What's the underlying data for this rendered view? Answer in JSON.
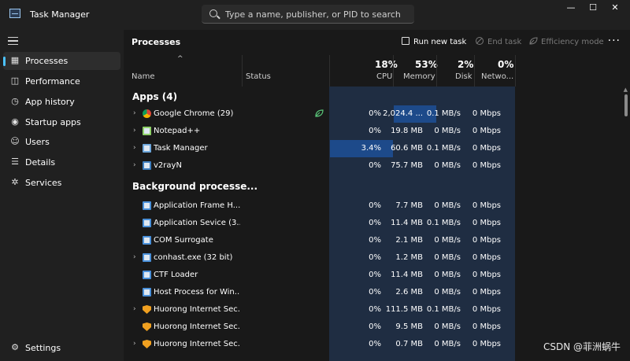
{
  "window": {
    "title": "Task Manager",
    "minimize": "—",
    "maximize": "☐",
    "close": "✕"
  },
  "search": {
    "placeholder": "Type a name, publisher, or PID to search"
  },
  "sidebar": {
    "items": [
      {
        "label": "Processes",
        "icon": "processes-icon",
        "glyph": "▦"
      },
      {
        "label": "Performance",
        "icon": "performance-icon",
        "glyph": "◫"
      },
      {
        "label": "App history",
        "icon": "app-history-icon",
        "glyph": "◷"
      },
      {
        "label": "Startup apps",
        "icon": "startup-apps-icon",
        "glyph": "◉"
      },
      {
        "label": "Users",
        "icon": "users-icon",
        "glyph": "☺"
      },
      {
        "label": "Details",
        "icon": "details-icon",
        "glyph": "☰"
      },
      {
        "label": "Services",
        "icon": "services-icon",
        "glyph": "✲"
      }
    ],
    "settings": {
      "label": "Settings",
      "glyph": "⚙"
    }
  },
  "toolbar": {
    "title": "Processes",
    "run_new_task": "Run new task",
    "end_task": "End task",
    "efficiency_mode": "Efficiency mode",
    "more": "···"
  },
  "columns": {
    "sort_arrow": "^",
    "name": "Name",
    "status": "Status",
    "cpu_pct": "18%",
    "cpu": "CPU",
    "memory_pct": "53%",
    "memory": "Memory",
    "disk_pct": "2%",
    "disk": "Disk",
    "network_pct": "0%",
    "network": "Netwo..."
  },
  "sections": {
    "apps": "Apps (4)",
    "background": "Background processe..."
  },
  "apps": [
    {
      "name": "Google Chrome (29)",
      "cpu": "0%",
      "memory": "2,024.4 ...",
      "disk": "0.1 MB/s",
      "network": "0 Mbps",
      "expandable": true,
      "status_icon": "efficiency-leaf",
      "icon_color": "#e8a020"
    },
    {
      "name": "Notepad++",
      "cpu": "0%",
      "memory": "19.8 MB",
      "disk": "0 MB/s",
      "network": "0 Mbps",
      "expandable": true,
      "icon_color": "#8fd16a"
    },
    {
      "name": "Task Manager",
      "cpu": "3.4%",
      "memory": "60.6 MB",
      "disk": "0.1 MB/s",
      "network": "0 Mbps",
      "expandable": true,
      "icon_color": "#6fa8dc"
    },
    {
      "name": "v2rayN",
      "cpu": "0%",
      "memory": "75.7 MB",
      "disk": "0 MB/s",
      "network": "0 Mbps",
      "expandable": true,
      "icon_color": "#3f7fbf"
    }
  ],
  "background": [
    {
      "name": "Application Frame H...",
      "cpu": "0%",
      "memory": "7.7 MB",
      "disk": "0 MB/s",
      "network": "0 Mbps",
      "expandable": false,
      "icon_color": "#4a90d9"
    },
    {
      "name": "Application Sevice (3...",
      "cpu": "0%",
      "memory": "11.4 MB",
      "disk": "0.1 MB/s",
      "network": "0 Mbps",
      "expandable": false,
      "icon_color": "#4a90d9"
    },
    {
      "name": "COM Surrogate",
      "cpu": "0%",
      "memory": "2.1 MB",
      "disk": "0 MB/s",
      "network": "0 Mbps",
      "expandable": false,
      "icon_color": "#4a90d9"
    },
    {
      "name": "conhast.exe (32 bit)",
      "cpu": "0%",
      "memory": "1.2 MB",
      "disk": "0 MB/s",
      "network": "0 Mbps",
      "expandable": true,
      "icon_color": "#4a90d9"
    },
    {
      "name": "CTF Loader",
      "cpu": "0%",
      "memory": "11.4 MB",
      "disk": "0 MB/s",
      "network": "0 Mbps",
      "expandable": false,
      "icon_color": "#4a90d9"
    },
    {
      "name": "Host Process for Win...",
      "cpu": "0%",
      "memory": "2.6 MB",
      "disk": "0 MB/s",
      "network": "0 Mbps",
      "expandable": false,
      "icon_color": "#4a90d9"
    },
    {
      "name": "Huorong Internet Sec...",
      "cpu": "0%",
      "memory": "111.5 MB",
      "disk": "0.1 MB/s",
      "network": "0 Mbps",
      "expandable": true,
      "icon_color": "#f0a020"
    },
    {
      "name": "Huorong Internet Sec...",
      "cpu": "0%",
      "memory": "9.5 MB",
      "disk": "0 MB/s",
      "network": "0 Mbps",
      "expandable": false,
      "icon_color": "#f0a020"
    },
    {
      "name": "Huorong Internet Sec...",
      "cpu": "0%",
      "memory": "0.7 MB",
      "disk": "0 MB/s",
      "network": "0 Mbps",
      "expandable": true,
      "icon_color": "#f0a020"
    }
  ],
  "colors": {
    "accent": "#4cc2ff",
    "usage_band": "#1f2d42",
    "usage_high": "#1d4a8a"
  },
  "watermark": "CSDN @菲洲蜗牛"
}
